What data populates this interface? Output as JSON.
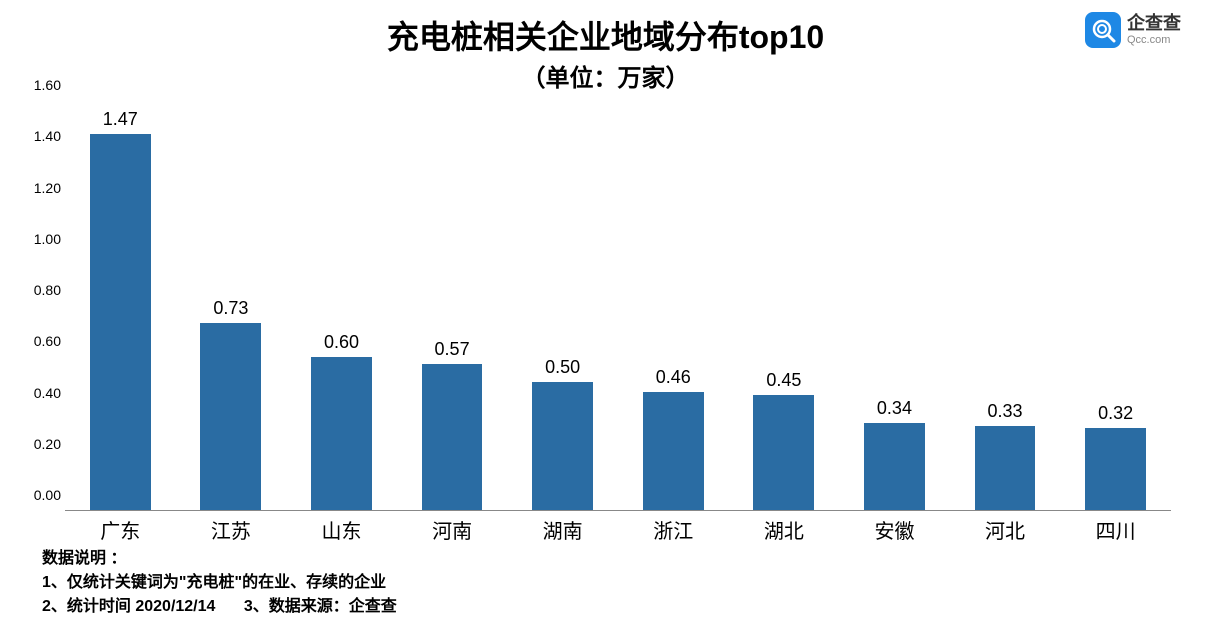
{
  "logo": {
    "cn": "企查查",
    "en": "Qcc.com",
    "icon_bg": "#1e88e5"
  },
  "title": {
    "main": "充电桩相关企业地域分布top10",
    "sub": "（单位：万家）",
    "main_fontsize": 32,
    "sub_fontsize": 24,
    "color": "#000000"
  },
  "chart": {
    "type": "bar",
    "categories": [
      "广东",
      "江苏",
      "山东",
      "河南",
      "湖南",
      "浙江",
      "湖北",
      "安徽",
      "河北",
      "四川"
    ],
    "values": [
      1.47,
      0.73,
      0.6,
      0.57,
      0.5,
      0.46,
      0.45,
      0.34,
      0.33,
      0.32
    ],
    "value_labels": [
      "1.47",
      "0.73",
      "0.60",
      "0.57",
      "0.50",
      "0.46",
      "0.45",
      "0.34",
      "0.33",
      "0.32"
    ],
    "bar_color": "#2a6ca3",
    "ylim": [
      0.0,
      1.6
    ],
    "ytick_step": 0.2,
    "yticks": [
      "0.00",
      "0.20",
      "0.40",
      "0.60",
      "0.80",
      "1.00",
      "1.20",
      "1.40",
      "1.60"
    ],
    "ytick_fontsize": 14,
    "value_label_fontsize": 18,
    "xlabel_fontsize": 20,
    "bar_width_ratio": 0.55,
    "background_color": "#ffffff",
    "axis_color": "#888888"
  },
  "notes": {
    "header": "数据说明 ：",
    "line1": "1、仅统计关键词为\"充电桩\"的在业、存续的企业",
    "line2a": "2、统计时间 2020/12/14",
    "line2b": "3、数据来源：企查查",
    "fontsize": 16
  }
}
